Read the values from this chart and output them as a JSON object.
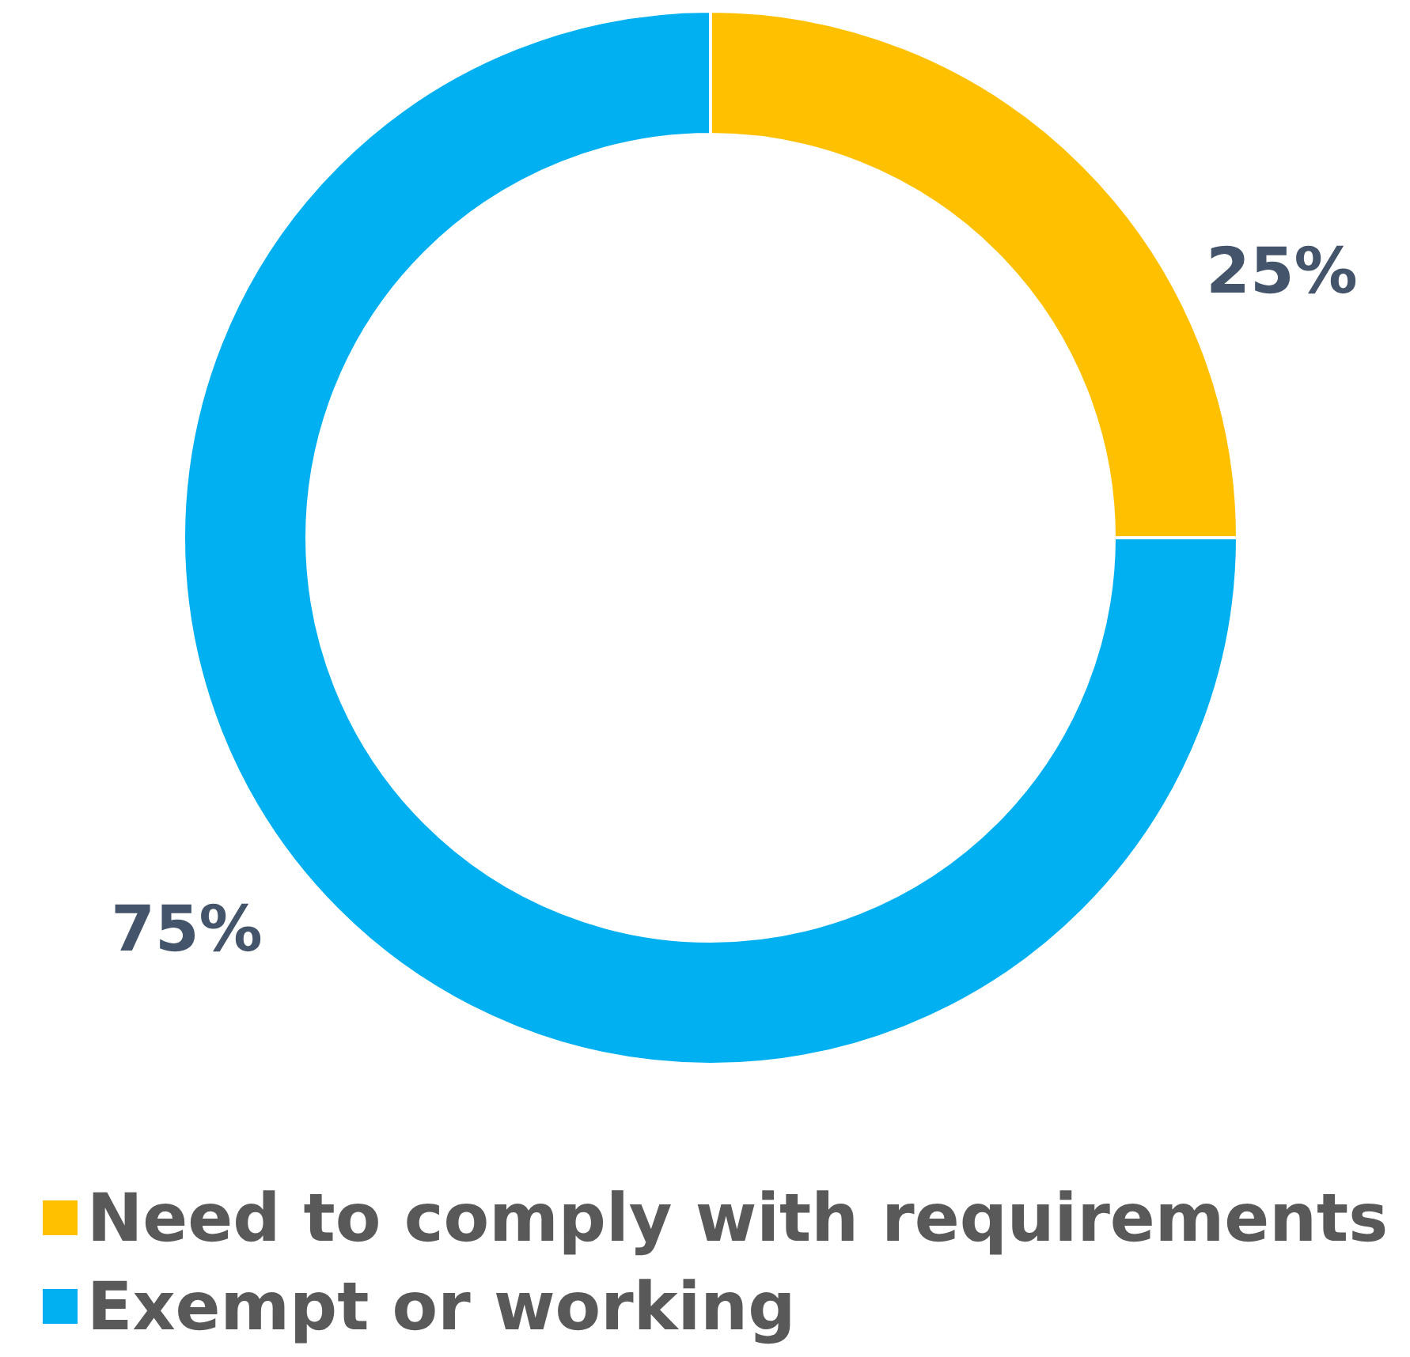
{
  "chart_data": {
    "type": "donut",
    "categories": [
      "Need to comply with requirements",
      "Exempt or working"
    ],
    "values": [
      25,
      75
    ],
    "colors": [
      "#ffc000",
      "#00b0f0"
    ],
    "value_labels": [
      "25%",
      "75%"
    ],
    "legend": "bottom left"
  }
}
